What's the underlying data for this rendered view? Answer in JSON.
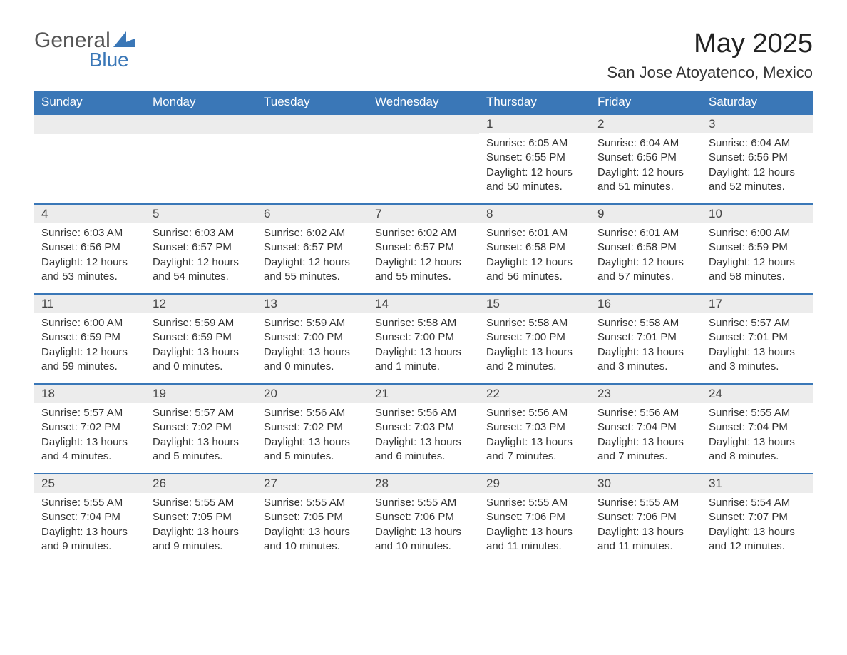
{
  "logo": {
    "text_general": "General",
    "text_blue": "Blue"
  },
  "header": {
    "title": "May 2025",
    "location": "San Jose Atoyatenco, Mexico"
  },
  "colors": {
    "brand_blue": "#3a77b7",
    "day_header_bg": "#ececec",
    "text": "#333333",
    "bg": "#ffffff"
  },
  "weekdays": [
    "Sunday",
    "Monday",
    "Tuesday",
    "Wednesday",
    "Thursday",
    "Friday",
    "Saturday"
  ],
  "weeks": [
    [
      null,
      null,
      null,
      null,
      {
        "day": "1",
        "sunrise": "Sunrise: 6:05 AM",
        "sunset": "Sunset: 6:55 PM",
        "daylight1": "Daylight: 12 hours",
        "daylight2": "and 50 minutes."
      },
      {
        "day": "2",
        "sunrise": "Sunrise: 6:04 AM",
        "sunset": "Sunset: 6:56 PM",
        "daylight1": "Daylight: 12 hours",
        "daylight2": "and 51 minutes."
      },
      {
        "day": "3",
        "sunrise": "Sunrise: 6:04 AM",
        "sunset": "Sunset: 6:56 PM",
        "daylight1": "Daylight: 12 hours",
        "daylight2": "and 52 minutes."
      }
    ],
    [
      {
        "day": "4",
        "sunrise": "Sunrise: 6:03 AM",
        "sunset": "Sunset: 6:56 PM",
        "daylight1": "Daylight: 12 hours",
        "daylight2": "and 53 minutes."
      },
      {
        "day": "5",
        "sunrise": "Sunrise: 6:03 AM",
        "sunset": "Sunset: 6:57 PM",
        "daylight1": "Daylight: 12 hours",
        "daylight2": "and 54 minutes."
      },
      {
        "day": "6",
        "sunrise": "Sunrise: 6:02 AM",
        "sunset": "Sunset: 6:57 PM",
        "daylight1": "Daylight: 12 hours",
        "daylight2": "and 55 minutes."
      },
      {
        "day": "7",
        "sunrise": "Sunrise: 6:02 AM",
        "sunset": "Sunset: 6:57 PM",
        "daylight1": "Daylight: 12 hours",
        "daylight2": "and 55 minutes."
      },
      {
        "day": "8",
        "sunrise": "Sunrise: 6:01 AM",
        "sunset": "Sunset: 6:58 PM",
        "daylight1": "Daylight: 12 hours",
        "daylight2": "and 56 minutes."
      },
      {
        "day": "9",
        "sunrise": "Sunrise: 6:01 AM",
        "sunset": "Sunset: 6:58 PM",
        "daylight1": "Daylight: 12 hours",
        "daylight2": "and 57 minutes."
      },
      {
        "day": "10",
        "sunrise": "Sunrise: 6:00 AM",
        "sunset": "Sunset: 6:59 PM",
        "daylight1": "Daylight: 12 hours",
        "daylight2": "and 58 minutes."
      }
    ],
    [
      {
        "day": "11",
        "sunrise": "Sunrise: 6:00 AM",
        "sunset": "Sunset: 6:59 PM",
        "daylight1": "Daylight: 12 hours",
        "daylight2": "and 59 minutes."
      },
      {
        "day": "12",
        "sunrise": "Sunrise: 5:59 AM",
        "sunset": "Sunset: 6:59 PM",
        "daylight1": "Daylight: 13 hours",
        "daylight2": "and 0 minutes."
      },
      {
        "day": "13",
        "sunrise": "Sunrise: 5:59 AM",
        "sunset": "Sunset: 7:00 PM",
        "daylight1": "Daylight: 13 hours",
        "daylight2": "and 0 minutes."
      },
      {
        "day": "14",
        "sunrise": "Sunrise: 5:58 AM",
        "sunset": "Sunset: 7:00 PM",
        "daylight1": "Daylight: 13 hours",
        "daylight2": "and 1 minute."
      },
      {
        "day": "15",
        "sunrise": "Sunrise: 5:58 AM",
        "sunset": "Sunset: 7:00 PM",
        "daylight1": "Daylight: 13 hours",
        "daylight2": "and 2 minutes."
      },
      {
        "day": "16",
        "sunrise": "Sunrise: 5:58 AM",
        "sunset": "Sunset: 7:01 PM",
        "daylight1": "Daylight: 13 hours",
        "daylight2": "and 3 minutes."
      },
      {
        "day": "17",
        "sunrise": "Sunrise: 5:57 AM",
        "sunset": "Sunset: 7:01 PM",
        "daylight1": "Daylight: 13 hours",
        "daylight2": "and 3 minutes."
      }
    ],
    [
      {
        "day": "18",
        "sunrise": "Sunrise: 5:57 AM",
        "sunset": "Sunset: 7:02 PM",
        "daylight1": "Daylight: 13 hours",
        "daylight2": "and 4 minutes."
      },
      {
        "day": "19",
        "sunrise": "Sunrise: 5:57 AM",
        "sunset": "Sunset: 7:02 PM",
        "daylight1": "Daylight: 13 hours",
        "daylight2": "and 5 minutes."
      },
      {
        "day": "20",
        "sunrise": "Sunrise: 5:56 AM",
        "sunset": "Sunset: 7:02 PM",
        "daylight1": "Daylight: 13 hours",
        "daylight2": "and 5 minutes."
      },
      {
        "day": "21",
        "sunrise": "Sunrise: 5:56 AM",
        "sunset": "Sunset: 7:03 PM",
        "daylight1": "Daylight: 13 hours",
        "daylight2": "and 6 minutes."
      },
      {
        "day": "22",
        "sunrise": "Sunrise: 5:56 AM",
        "sunset": "Sunset: 7:03 PM",
        "daylight1": "Daylight: 13 hours",
        "daylight2": "and 7 minutes."
      },
      {
        "day": "23",
        "sunrise": "Sunrise: 5:56 AM",
        "sunset": "Sunset: 7:04 PM",
        "daylight1": "Daylight: 13 hours",
        "daylight2": "and 7 minutes."
      },
      {
        "day": "24",
        "sunrise": "Sunrise: 5:55 AM",
        "sunset": "Sunset: 7:04 PM",
        "daylight1": "Daylight: 13 hours",
        "daylight2": "and 8 minutes."
      }
    ],
    [
      {
        "day": "25",
        "sunrise": "Sunrise: 5:55 AM",
        "sunset": "Sunset: 7:04 PM",
        "daylight1": "Daylight: 13 hours",
        "daylight2": "and 9 minutes."
      },
      {
        "day": "26",
        "sunrise": "Sunrise: 5:55 AM",
        "sunset": "Sunset: 7:05 PM",
        "daylight1": "Daylight: 13 hours",
        "daylight2": "and 9 minutes."
      },
      {
        "day": "27",
        "sunrise": "Sunrise: 5:55 AM",
        "sunset": "Sunset: 7:05 PM",
        "daylight1": "Daylight: 13 hours",
        "daylight2": "and 10 minutes."
      },
      {
        "day": "28",
        "sunrise": "Sunrise: 5:55 AM",
        "sunset": "Sunset: 7:06 PM",
        "daylight1": "Daylight: 13 hours",
        "daylight2": "and 10 minutes."
      },
      {
        "day": "29",
        "sunrise": "Sunrise: 5:55 AM",
        "sunset": "Sunset: 7:06 PM",
        "daylight1": "Daylight: 13 hours",
        "daylight2": "and 11 minutes."
      },
      {
        "day": "30",
        "sunrise": "Sunrise: 5:55 AM",
        "sunset": "Sunset: 7:06 PM",
        "daylight1": "Daylight: 13 hours",
        "daylight2": "and 11 minutes."
      },
      {
        "day": "31",
        "sunrise": "Sunrise: 5:54 AM",
        "sunset": "Sunset: 7:07 PM",
        "daylight1": "Daylight: 13 hours",
        "daylight2": "and 12 minutes."
      }
    ]
  ]
}
